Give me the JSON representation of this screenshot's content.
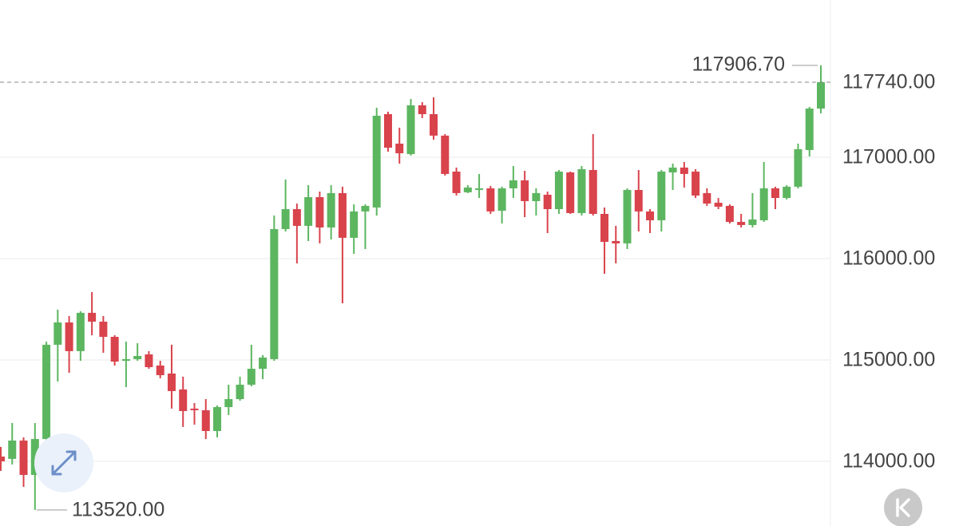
{
  "chart_data": {
    "type": "candlestick",
    "up_color": "#5cb660",
    "down_color": "#d9434c",
    "open": [
      114047,
      114024,
      114205,
      113866,
      114220,
      115150,
      115370,
      115087,
      115465,
      115378,
      115228,
      114992,
      115008,
      115055,
      114945,
      114866,
      114709,
      114520,
      114504,
      114299,
      114535,
      114614,
      114756,
      114913,
      115008,
      116291,
      116488,
      116323,
      116606,
      116307,
      116646,
      116205,
      116465,
      116504,
      117425,
      117134,
      117031,
      117512,
      117425,
      117213,
      116858,
      116654,
      116685,
      116693,
      116472,
      116693,
      116772,
      116567,
      116630,
      116488,
      116850,
      116449,
      116874,
      116441,
      116173,
      116150,
      116677,
      116465,
      116378,
      116850,
      116898,
      116858,
      116646,
      116551,
      116520,
      116362,
      116331,
      116378,
      116693,
      116598,
      116709,
      117071,
      117480
    ],
    "high": [
      114142,
      114378,
      114236,
      114378,
      115181,
      115496,
      115433,
      115480,
      115669,
      115433,
      115244,
      115181,
      115165,
      115087,
      114992,
      115150,
      114835,
      114575,
      114614,
      114551,
      114756,
      114835,
      115150,
      115047,
      116425,
      116780,
      116543,
      116724,
      116661,
      116724,
      116709,
      116535,
      116535,
      117488,
      117449,
      117291,
      117575,
      117543,
      117591,
      117228,
      116898,
      116724,
      116835,
      116717,
      116709,
      116913,
      116866,
      116693,
      116661,
      116874,
      116858,
      116913,
      117228,
      116504,
      116323,
      116693,
      116874,
      116488,
      116874,
      116937,
      116953,
      116882,
      116693,
      116598,
      116535,
      116441,
      116646,
      116953,
      116709,
      116724,
      117134,
      117496,
      117906.7
    ],
    "low": [
      113906,
      113969,
      113748,
      113520,
      113827,
      114787,
      114874,
      114992,
      115244,
      115071,
      114945,
      114732,
      114992,
      114913,
      114819,
      114520,
      114339,
      114362,
      114220,
      114236,
      114457,
      114598,
      114740,
      114811,
      114992,
      116268,
      115953,
      116173,
      116150,
      116189,
      115559,
      116047,
      116094,
      116425,
      117055,
      116937,
      117016,
      117386,
      117173,
      116819,
      116622,
      116646,
      116598,
      116441,
      116346,
      116598,
      116409,
      116425,
      116252,
      116441,
      116441,
      116425,
      116425,
      115850,
      115953,
      116094,
      116268,
      116252,
      116268,
      116677,
      116701,
      116598,
      116520,
      116488,
      116346,
      116307,
      116307,
      116362,
      116488,
      116583,
      116693,
      117008,
      117433
    ],
    "close": [
      114000,
      114205,
      113866,
      114220,
      115150,
      115370,
      115087,
      115465,
      115378,
      115228,
      114984,
      115008,
      115039,
      114929,
      114850,
      114693,
      114496,
      114504,
      114299,
      114535,
      114614,
      114756,
      114913,
      115024,
      116291,
      116488,
      116323,
      116606,
      116307,
      116646,
      116205,
      116465,
      116520,
      117409,
      117094,
      117039,
      117512,
      117425,
      117213,
      116835,
      116646,
      116701,
      116693,
      116465,
      116693,
      116772,
      116567,
      116646,
      116488,
      116858,
      116449,
      116882,
      116441,
      116165,
      116150,
      116677,
      116465,
      116378,
      116858,
      116898,
      116835,
      116622,
      116543,
      116512,
      116362,
      116331,
      116386,
      116693,
      116598,
      116709,
      117079,
      117480,
      117740
    ],
    "ylim": [
      113362,
      118551
    ],
    "yticks": [
      {
        "value": 114000,
        "label": "114000.00"
      },
      {
        "value": 115000,
        "label": "115000.00"
      },
      {
        "value": 116000,
        "label": "116000.00"
      },
      {
        "value": 117000,
        "label": "117000.00"
      }
    ],
    "grid": true,
    "last_price": {
      "value": 117740,
      "label": "117740.00"
    },
    "high_marker": {
      "value": 117906.7,
      "label": "117906.70"
    },
    "low_marker": {
      "value": 113520,
      "label": "113520.00"
    }
  }
}
